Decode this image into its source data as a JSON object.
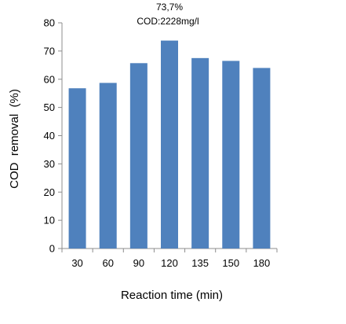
{
  "chart_data": {
    "type": "bar",
    "categories": [
      "30",
      "60",
      "90",
      "120",
      "135",
      "150",
      "180"
    ],
    "values": [
      56.8,
      58.7,
      65.7,
      73.7,
      67.5,
      66.5,
      64.0
    ],
    "xlabel": "Reaction time (min)",
    "ylabel": "COD  removal  (%)",
    "ylim": [
      0,
      80
    ],
    "yticks": [
      "0",
      "10",
      "20",
      "30",
      "40",
      "50",
      "60",
      "70",
      "80"
    ],
    "grid": false,
    "legend": "none",
    "bar_color": "#4F81BD",
    "annotation": {
      "category": "120",
      "line1": "73,7%",
      "line2": "COD:2228mg/l"
    }
  }
}
